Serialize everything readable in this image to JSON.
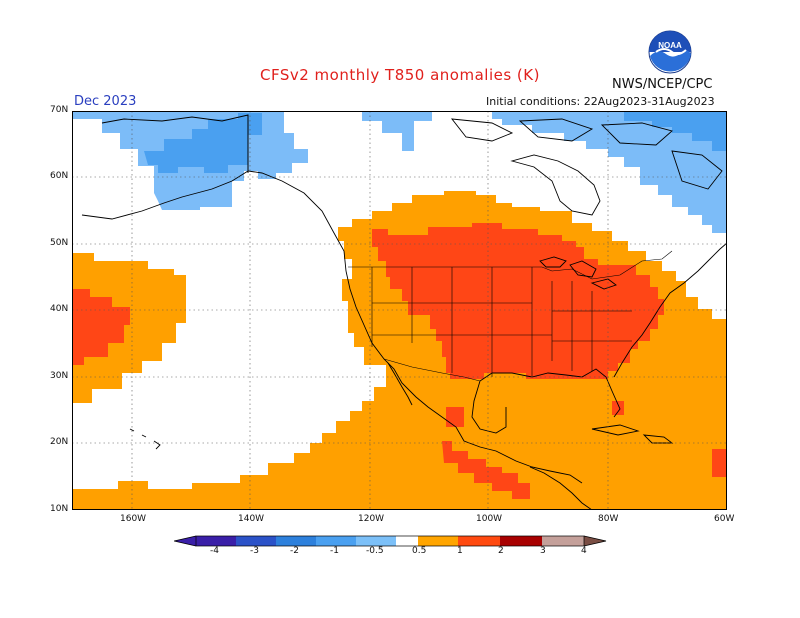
{
  "header": {
    "title": "CFSv2 monthly T850 anomalies (K)",
    "agency": "NWS/NCEP/CPC",
    "valid_month": "Dec 2023",
    "initial_conditions": "Initial conditions: 22Aug2023-31Aug2023"
  },
  "logo": {
    "text": "NOAA"
  },
  "axes": {
    "lat_labels": [
      "70N",
      "60N",
      "50N",
      "40N",
      "30N",
      "20N",
      "10N"
    ],
    "lon_labels": [
      "160W",
      "140W",
      "120W",
      "100W",
      "80W",
      "60W"
    ]
  },
  "colorbar": {
    "labels": [
      "-4",
      "-3",
      "-2",
      "-1",
      "-0.5",
      "0.5",
      "1",
      "2",
      "3",
      "4"
    ],
    "colors": [
      "#3a1fa8",
      "#2b52c8",
      "#2d80dc",
      "#4aa0f0",
      "#7cc0f8",
      "#ffffff",
      "#ffa500",
      "#ff4a10",
      "#a80000",
      "#c4a09a",
      "#7a4e44"
    ]
  },
  "colors": {
    "positive_0_5_to_1": "#ffa000",
    "positive_1_to_2": "#ff4616",
    "negative_0_5_to_1": "#7cbcf8",
    "negative_1_to_2": "#4aa0f0"
  }
}
